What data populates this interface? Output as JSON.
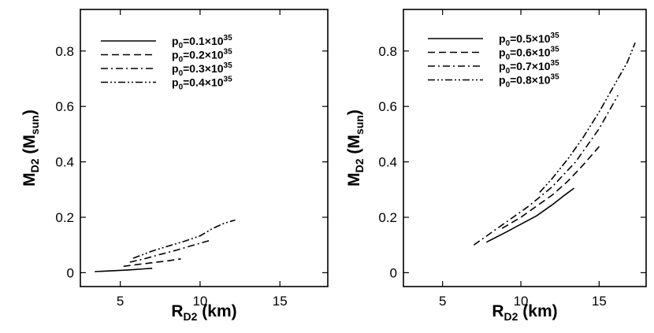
{
  "chart_data": [
    {
      "type": "line",
      "xlabel": {
        "main": "R",
        "sub": "D2",
        "unit": " (km)"
      },
      "ylabel": {
        "main": "M",
        "sub": "D2",
        "unit": "M",
        "unit_sub": "sun"
      },
      "xlim": [
        2.5,
        18
      ],
      "ylim": [
        -0.05,
        0.95
      ],
      "xticks": [
        5,
        10,
        15
      ],
      "yticks": [
        0,
        0.2,
        0.4,
        0.6,
        0.8
      ],
      "ytick_labels": [
        "0",
        "0.2",
        "0.4",
        "0.6",
        "0.8"
      ],
      "legend_position": "top-left",
      "series": [
        {
          "name": "p0=0.1×10^35",
          "label_main": "p",
          "label_sub": "0",
          "label_value": "=0.1×10",
          "label_exp": "35",
          "dash": "solid",
          "x": [
            3.4,
            4.5,
            5.5,
            6.5,
            7.0
          ],
          "y": [
            0.004,
            0.007,
            0.01,
            0.014,
            0.016
          ]
        },
        {
          "name": "p0=0.2×10^35",
          "label_main": "p",
          "label_sub": "0",
          "label_value": "=0.2×10",
          "label_exp": "35",
          "dash": "dash",
          "x": [
            5.2,
            6.0,
            7.0,
            8.0,
            8.8
          ],
          "y": [
            0.023,
            0.029,
            0.036,
            0.043,
            0.05
          ]
        },
        {
          "name": "p0=0.3×10^35",
          "label_main": "p",
          "label_sub": "0",
          "label_value": "=0.3×10",
          "label_exp": "35",
          "dash": "dashdot",
          "x": [
            5.6,
            6.5,
            7.5,
            8.5,
            9.5,
            10.7
          ],
          "y": [
            0.038,
            0.05,
            0.066,
            0.081,
            0.098,
            0.118
          ]
        },
        {
          "name": "p0=0.4×10^35",
          "label_main": "p",
          "label_sub": "0",
          "label_value": "=0.4×10",
          "label_exp": "35",
          "dash": "dashdotdot",
          "x": [
            5.8,
            7.0,
            8.0,
            9.0,
            10.0,
            10.8,
            11.5,
            12.2
          ],
          "y": [
            0.052,
            0.078,
            0.096,
            0.113,
            0.133,
            0.16,
            0.178,
            0.19
          ]
        }
      ]
    },
    {
      "type": "line",
      "xlabel": {
        "main": "R",
        "sub": "D2",
        "unit": " (km)"
      },
      "ylabel": {
        "main": "M",
        "sub": "D2",
        "unit": "M",
        "unit_sub": "sun"
      },
      "xlim": [
        2.5,
        18
      ],
      "ylim": [
        -0.05,
        0.95
      ],
      "xticks": [
        5,
        10,
        15
      ],
      "yticks": [
        0,
        0.2,
        0.4,
        0.6,
        0.8
      ],
      "ytick_labels": [
        "0",
        "0.2",
        "0.4",
        "0.6",
        "0.8"
      ],
      "legend_position": "top-left",
      "series": [
        {
          "name": "p0=0.5×10^35",
          "label_main": "p",
          "label_sub": "0",
          "label_value": "=0.5×10",
          "label_exp": "35",
          "dash": "solid",
          "x": [
            7.8,
            9.0,
            10.0,
            11.0,
            12.0,
            12.8,
            13.4
          ],
          "y": [
            0.11,
            0.145,
            0.175,
            0.205,
            0.245,
            0.28,
            0.305
          ]
        },
        {
          "name": "p0=0.6×10^35",
          "label_main": "p",
          "label_sub": "0",
          "label_value": "=0.6×10",
          "label_exp": "35",
          "dash": "dash",
          "x": [
            8.8,
            10.0,
            11.0,
            12.0,
            13.0,
            14.0,
            15.0
          ],
          "y": [
            0.16,
            0.2,
            0.24,
            0.28,
            0.33,
            0.39,
            0.455
          ]
        },
        {
          "name": "p0=0.7×10^35",
          "label_main": "p",
          "label_sub": "0",
          "label_value": "=0.7×10",
          "label_exp": "35",
          "dash": "dashdot",
          "x": [
            7.0,
            9.0,
            10.5,
            12.0,
            13.5,
            15.0,
            16.2
          ],
          "y": [
            0.1,
            0.18,
            0.24,
            0.31,
            0.4,
            0.52,
            0.64
          ]
        },
        {
          "name": "p0=0.8×10^35",
          "label_main": "p",
          "label_sub": "0",
          "label_value": "=0.8×10",
          "label_exp": "35",
          "dash": "dashdotdot",
          "x": [
            11.2,
            12.0,
            13.0,
            14.0,
            15.0,
            16.0,
            16.8,
            17.3
          ],
          "y": [
            0.29,
            0.34,
            0.41,
            0.49,
            0.58,
            0.68,
            0.76,
            0.83
          ]
        }
      ]
    }
  ]
}
